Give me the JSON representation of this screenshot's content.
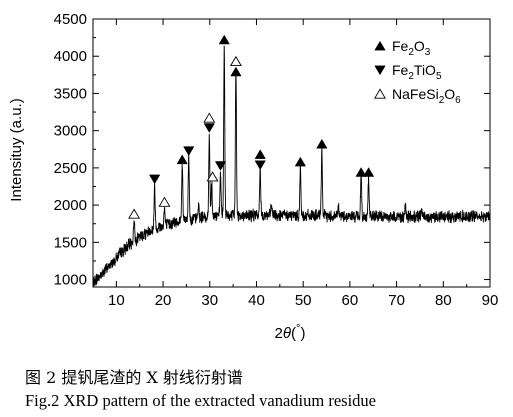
{
  "caption": {
    "cn": "图 2 提钒尾渣的 X 射线衍射谱",
    "en": "Fig.2 XRD pattern of the extracted vanadium residue"
  },
  "chart_data": {
    "type": "line",
    "title": "",
    "xlabel": "2θ(°)",
    "ylabel": "Intensituy (a.u.)",
    "xlim": [
      5,
      90
    ],
    "ylim": [
      900,
      4500
    ],
    "xticks": [
      10,
      20,
      30,
      40,
      50,
      60,
      70,
      80,
      90
    ],
    "yticks": [
      1000,
      1500,
      2000,
      2500,
      3000,
      3500,
      4000,
      4500
    ],
    "line_color": "#000000",
    "background_points": [
      [
        5,
        950
      ],
      [
        6,
        1020
      ],
      [
        7,
        1080
      ],
      [
        8,
        1150
      ],
      [
        9,
        1220
      ],
      [
        10,
        1290
      ],
      [
        11,
        1360
      ],
      [
        12,
        1420
      ],
      [
        13,
        1480
      ],
      [
        14,
        1530
      ],
      [
        15,
        1570
      ],
      [
        16,
        1610
      ],
      [
        17,
        1650
      ],
      [
        18,
        1680
      ],
      [
        19,
        1705
      ],
      [
        20,
        1725
      ],
      [
        22,
        1760
      ],
      [
        24,
        1790
      ],
      [
        26,
        1810
      ],
      [
        28,
        1830
      ],
      [
        30,
        1845
      ],
      [
        32,
        1855
      ],
      [
        35,
        1860
      ],
      [
        40,
        1865
      ],
      [
        45,
        1865
      ],
      [
        50,
        1860
      ],
      [
        55,
        1855
      ],
      [
        60,
        1850
      ],
      [
        65,
        1845
      ],
      [
        70,
        1845
      ],
      [
        75,
        1845
      ],
      [
        80,
        1845
      ],
      [
        85,
        1850
      ],
      [
        90,
        1850
      ]
    ],
    "peaks": [
      {
        "x": 13.8,
        "y": 1820,
        "phase": "NaFeSi2O6"
      },
      {
        "x": 18.2,
        "y": 2250,
        "phase": "Fe2TiO5"
      },
      {
        "x": 20.3,
        "y": 1960,
        "phase": "NaFeSi2O6"
      },
      {
        "x": 24.1,
        "y": 2550,
        "phase": "Fe2O3"
      },
      {
        "x": 25.5,
        "y": 2680,
        "phase": "Fe2TiO5"
      },
      {
        "x": 27.6,
        "y": 2000,
        "phase": null
      },
      {
        "x": 29.9,
        "y": 2950,
        "phase": "Fe2TiO5"
      },
      {
        "x": 30.4,
        "y": 2350,
        "phase": "NaFeSi2O6"
      },
      {
        "x": 32.3,
        "y": 2450,
        "phase": "Fe2TiO5"
      },
      {
        "x": 33.1,
        "y": 4150,
        "phase": "Fe2O3"
      },
      {
        "x": 35.6,
        "y": 3850,
        "phase": "Fe2O3"
      },
      {
        "x": 40.8,
        "y": 2500,
        "phase": "Fe2O3"
      },
      {
        "x": 43.2,
        "y": 2000,
        "phase": null
      },
      {
        "x": 49.4,
        "y": 2500,
        "phase": "Fe2O3"
      },
      {
        "x": 54.0,
        "y": 2750,
        "phase": "Fe2O3"
      },
      {
        "x": 57.5,
        "y": 2020,
        "phase": null
      },
      {
        "x": 62.4,
        "y": 2380,
        "phase": "Fe2O3"
      },
      {
        "x": 64.0,
        "y": 2380,
        "phase": "Fe2O3"
      },
      {
        "x": 71.9,
        "y": 1960,
        "phase": null
      },
      {
        "x": 75.4,
        "y": 1950,
        "phase": null
      }
    ],
    "markers": [
      {
        "x": 13.8,
        "y": 1880,
        "symbol": "triangle-open",
        "phase": "NaFeSi2O6"
      },
      {
        "x": 18.2,
        "y": 2350,
        "symbol": "triangle-down",
        "phase": "Fe2TiO5"
      },
      {
        "x": 20.3,
        "y": 2040,
        "symbol": "triangle-open",
        "phase": "NaFeSi2O6"
      },
      {
        "x": 24.1,
        "y": 2610,
        "symbol": "triangle-up",
        "phase": "Fe2O3"
      },
      {
        "x": 25.5,
        "y": 2730,
        "symbol": "triangle-down",
        "phase": "Fe2TiO5"
      },
      {
        "x": 29.9,
        "y": 3170,
        "symbol": "triangle-open",
        "phase": "NaFeSi2O6"
      },
      {
        "x": 29.9,
        "y": 3040,
        "symbol": "triangle-down",
        "phase": "Fe2TiO5"
      },
      {
        "x": 30.6,
        "y": 2380,
        "symbol": "triangle-open",
        "phase": "NaFeSi2O6"
      },
      {
        "x": 32.3,
        "y": 2530,
        "symbol": "triangle-down",
        "phase": "Fe2TiO5"
      },
      {
        "x": 33.1,
        "y": 4220,
        "symbol": "triangle-up",
        "phase": "Fe2O3"
      },
      {
        "x": 35.6,
        "y": 3930,
        "symbol": "triangle-open",
        "phase": "NaFeSi2O6"
      },
      {
        "x": 35.6,
        "y": 3790,
        "symbol": "triangle-up",
        "phase": "Fe2O3"
      },
      {
        "x": 40.8,
        "y": 2680,
        "symbol": "triangle-up",
        "phase": "Fe2O3"
      },
      {
        "x": 40.8,
        "y": 2540,
        "symbol": "triangle-down",
        "phase": "Fe2TiO5"
      },
      {
        "x": 49.4,
        "y": 2580,
        "symbol": "triangle-up",
        "phase": "Fe2O3"
      },
      {
        "x": 54.0,
        "y": 2820,
        "symbol": "triangle-up",
        "phase": "Fe2O3"
      },
      {
        "x": 62.4,
        "y": 2440,
        "symbol": "triangle-up",
        "phase": "Fe2O3"
      },
      {
        "x": 64.0,
        "y": 2440,
        "symbol": "triangle-up",
        "phase": "Fe2O3"
      }
    ],
    "legend": {
      "placement": "top-right",
      "entries": [
        {
          "symbol": "triangle-up",
          "base": "Fe",
          "sub1": "2",
          "mid": "O",
          "sub2": "3",
          "tail": "",
          "sub3": ""
        },
        {
          "symbol": "triangle-down",
          "base": "Fe",
          "sub1": "2",
          "mid": "TiO",
          "sub2": "5",
          "tail": "",
          "sub3": ""
        },
        {
          "symbol": "triangle-open",
          "base": "NaFeSi",
          "sub1": "2",
          "mid": "O",
          "sub2": "6",
          "tail": "",
          "sub3": ""
        }
      ]
    },
    "grid": false
  }
}
